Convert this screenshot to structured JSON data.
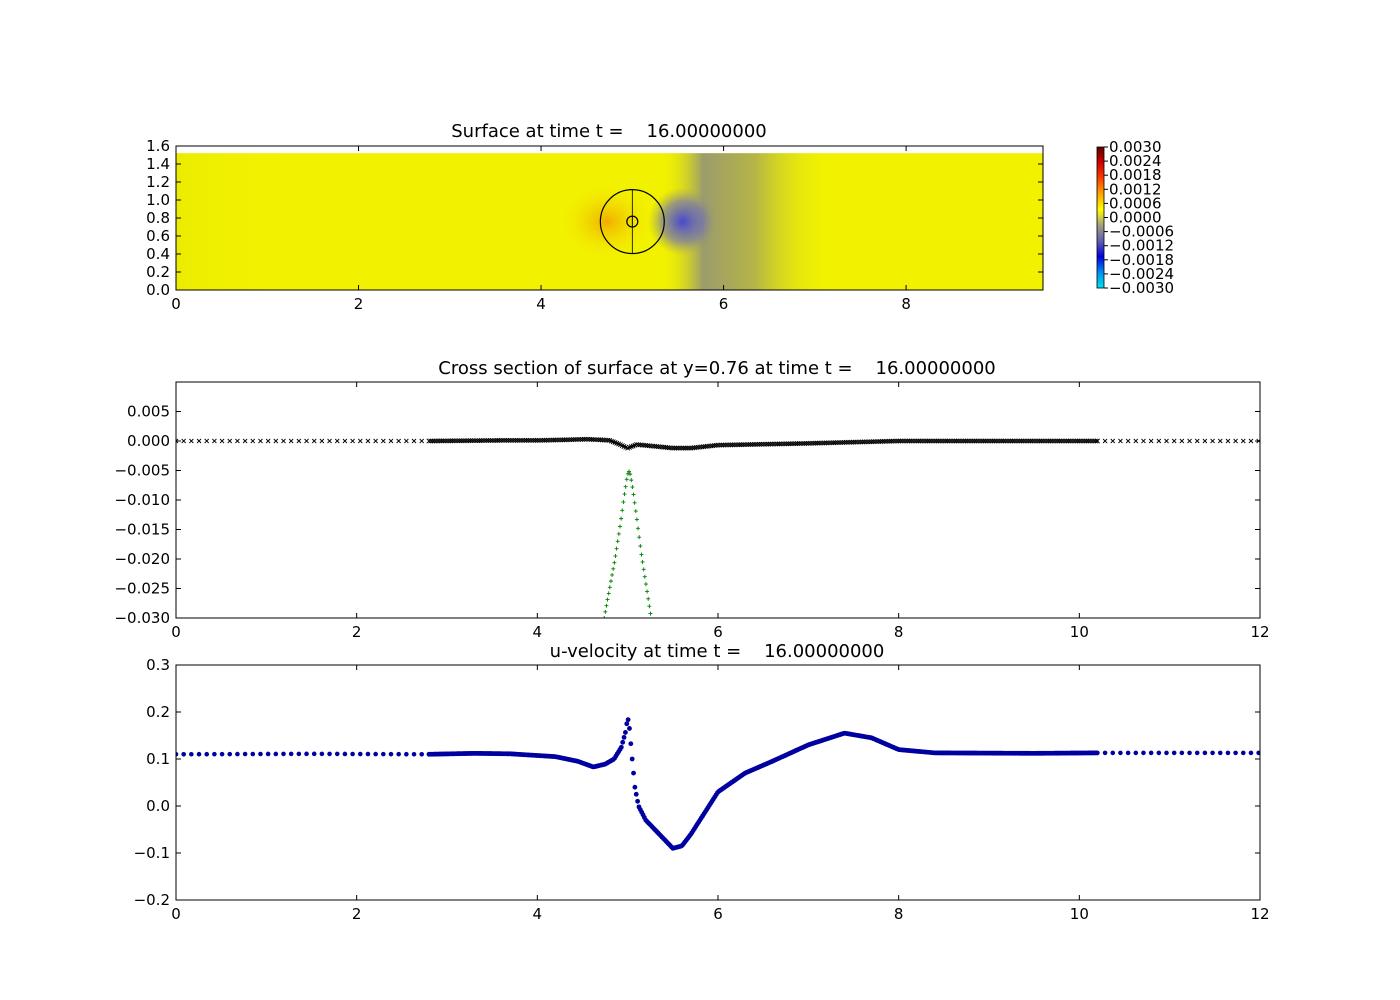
{
  "colors": {
    "surface_yellow": "#f2f200",
    "surface_orange": "#f0a000",
    "surface_blue": "#4b4bd8",
    "surface_gray": "#9a9a6a",
    "cross_black": "#000000",
    "cross_green": "#008000",
    "velocity_blue": "#0000a0"
  },
  "chart_data": [
    {
      "id": "surface",
      "type": "heatmap",
      "title": "Surface at time t =    16.00000000",
      "xlim": [
        0,
        9.5
      ],
      "ylim": [
        0,
        1.6
      ],
      "xticks": [
        0,
        2,
        4,
        6,
        8
      ],
      "yticks": [
        0.0,
        0.2,
        0.4,
        0.6,
        0.8,
        1.0,
        1.2,
        1.4,
        1.6
      ],
      "ytick_labels": [
        "0.0",
        "0.2",
        "0.4",
        "0.6",
        "0.8",
        "1.0",
        "1.2",
        "1.4",
        "1.6"
      ],
      "data_extent": {
        "x": [
          0,
          9.5
        ],
        "y": [
          0,
          1.52
        ]
      },
      "features": [
        {
          "kind": "positive_lobe",
          "x": 4.72,
          "y": 0.76,
          "value": 0.0006
        },
        {
          "kind": "negative_lobe",
          "x": 5.55,
          "y": 0.76,
          "value": -0.0018
        },
        {
          "kind": "wake_band",
          "x_range": [
            5.3,
            7.2
          ],
          "value": -0.0006
        }
      ],
      "outline_circles": [
        {
          "cx": 5.0,
          "cy": 0.76,
          "r": 0.35
        },
        {
          "cx": 5.0,
          "cy": 0.76,
          "r": 0.06
        }
      ],
      "colorbar": {
        "vmin": -0.003,
        "vmax": 0.003,
        "tick_labels": [
          "0.0030",
          "0.0024",
          "0.0018",
          "0.0012",
          "0.0006",
          "0.0000",
          "−0.0006",
          "−0.0012",
          "−0.0018",
          "−0.0024",
          "−0.0030"
        ],
        "colors": [
          "#00e0f0",
          "#0090f0",
          "#0000e0",
          "#6060b0",
          "#a0a080",
          "#ffff00",
          "#ffa500",
          "#ff4000",
          "#d00000",
          "#600000"
        ]
      }
    },
    {
      "id": "cross_section",
      "type": "scatter",
      "title": "Cross section of surface at y=0.76 at time t =    16.00000000",
      "xlim": [
        0,
        12
      ],
      "ylim": [
        -0.03,
        0.01
      ],
      "xticks": [
        0,
        2,
        4,
        6,
        8,
        10,
        12
      ],
      "yticks": [
        0.005,
        0.0,
        -0.005,
        -0.01,
        -0.015,
        -0.02,
        -0.025,
        -0.03
      ],
      "ytick_labels": [
        "0.005",
        "0.000",
        "−0.005",
        "−0.010",
        "−0.015",
        "−0.020",
        "−0.025",
        "−0.030"
      ],
      "series": [
        {
          "marker": "x",
          "points": [
            [
              0,
              0
            ],
            [
              2,
              0
            ],
            [
              2.8,
              0
            ],
            [
              3.6,
              0.0001
            ],
            [
              4.0,
              0.0001
            ],
            [
              4.3,
              0.0002
            ],
            [
              4.55,
              0.0003
            ],
            [
              4.7,
              0.0002
            ],
            [
              4.8,
              0.0001
            ],
            [
              4.9,
              -0.0005
            ],
            [
              5.0,
              -0.0012
            ],
            [
              5.1,
              -0.0006
            ],
            [
              5.3,
              -0.0009
            ],
            [
              5.5,
              -0.0012
            ],
            [
              5.7,
              -0.0012
            ],
            [
              6.0,
              -0.0007
            ],
            [
              7.0,
              -0.0004
            ],
            [
              8.0,
              0.0
            ],
            [
              10.2,
              0.0
            ],
            [
              12.0,
              0.0
            ]
          ]
        },
        {
          "marker": "+",
          "points": [
            [
              4.74,
              -0.03
            ],
            [
              4.8,
              -0.025
            ],
            [
              4.86,
              -0.02
            ],
            [
              4.92,
              -0.014
            ],
            [
              4.96,
              -0.0095
            ],
            [
              4.99,
              -0.0065
            ],
            [
              5.01,
              -0.005
            ],
            [
              5.03,
              -0.0057
            ],
            [
              5.06,
              -0.0085
            ],
            [
              5.1,
              -0.013
            ],
            [
              5.15,
              -0.019
            ],
            [
              5.21,
              -0.025
            ],
            [
              5.26,
              -0.03
            ]
          ]
        }
      ]
    },
    {
      "id": "u_velocity",
      "type": "scatter",
      "title": "u-velocity at time t =    16.00000000",
      "xlim": [
        0,
        12
      ],
      "ylim": [
        -0.2,
        0.3
      ],
      "xticks": [
        0,
        2,
        4,
        6,
        8,
        10,
        12
      ],
      "yticks": [
        0.3,
        0.2,
        0.1,
        0.0,
        -0.1,
        -0.2
      ],
      "ytick_labels": [
        "0.3",
        "0.2",
        "0.1",
        "0.0",
        "−0.1",
        "−0.2"
      ],
      "series": [
        {
          "marker": "o",
          "points": [
            [
              0,
              0.11
            ],
            [
              1.5,
              0.111
            ],
            [
              2.8,
              0.11
            ],
            [
              3.3,
              0.112
            ],
            [
              3.7,
              0.111
            ],
            [
              4.2,
              0.105
            ],
            [
              4.45,
              0.095
            ],
            [
              4.62,
              0.083
            ],
            [
              4.75,
              0.089
            ],
            [
              4.85,
              0.1
            ],
            [
              4.93,
              0.125
            ],
            [
              4.98,
              0.16
            ],
            [
              5.0,
              0.19
            ],
            [
              5.02,
              0.165
            ],
            [
              5.05,
              0.1
            ],
            [
              5.08,
              0.04
            ],
            [
              5.12,
              0.0
            ],
            [
              5.2,
              -0.03
            ],
            [
              5.3,
              -0.05
            ],
            [
              5.4,
              -0.07
            ],
            [
              5.5,
              -0.09
            ],
            [
              5.6,
              -0.085
            ],
            [
              5.7,
              -0.06
            ],
            [
              5.8,
              -0.03
            ],
            [
              6.0,
              0.03
            ],
            [
              6.3,
              0.07
            ],
            [
              6.6,
              0.095
            ],
            [
              7.0,
              0.13
            ],
            [
              7.4,
              0.155
            ],
            [
              7.7,
              0.145
            ],
            [
              8.0,
              0.12
            ],
            [
              8.4,
              0.113
            ],
            [
              9.5,
              0.112
            ],
            [
              10.2,
              0.113
            ],
            [
              12.0,
              0.113
            ]
          ]
        }
      ]
    }
  ]
}
